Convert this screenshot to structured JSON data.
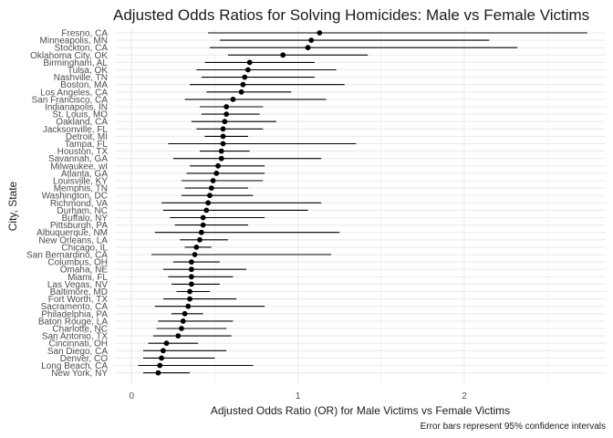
{
  "chart_data": {
    "type": "scatter",
    "subtype": "forest-plot",
    "title": "Adjusted Odds Ratios for Solving Homicides: Male vs Female Victims",
    "xlabel": "Adjusted Odds Ratio (OR) for Male Victims vs Female Victims",
    "ylabel": "City, State",
    "caption": "Error bars represent 95% confidence intervals",
    "xlim": [
      -0.1,
      2.85
    ],
    "xticks": [
      0,
      1,
      2
    ],
    "grid": true,
    "legend": "none",
    "colors": {
      "point": "#000000",
      "errorbar": "#000000",
      "grid": "#ebebeb"
    },
    "points": [
      {
        "city": "Fresno, CA",
        "or": 1.13,
        "lo": 0.46,
        "hi": 2.74
      },
      {
        "city": "Minneapolis, MN",
        "or": 1.08,
        "lo": 0.53,
        "hi": 2.15
      },
      {
        "city": "Stockton, CA",
        "or": 1.06,
        "lo": 0.47,
        "hi": 2.32
      },
      {
        "city": "Oklahoma City, OK",
        "or": 0.91,
        "lo": 0.58,
        "hi": 1.42
      },
      {
        "city": "Birmingham, AL",
        "or": 0.71,
        "lo": 0.44,
        "hi": 1.1
      },
      {
        "city": "Tulsa, OK",
        "or": 0.7,
        "lo": 0.39,
        "hi": 1.23
      },
      {
        "city": "Nashville, TN",
        "or": 0.68,
        "lo": 0.42,
        "hi": 1.1
      },
      {
        "city": "Boston, MA",
        "or": 0.67,
        "lo": 0.35,
        "hi": 1.28
      },
      {
        "city": "Los Angeles, CA",
        "or": 0.66,
        "lo": 0.45,
        "hi": 0.96
      },
      {
        "city": "San Francisco, CA",
        "or": 0.61,
        "lo": 0.32,
        "hi": 1.17
      },
      {
        "city": "Indianapolis, IN",
        "or": 0.57,
        "lo": 0.41,
        "hi": 0.79
      },
      {
        "city": "St. Louis, MO",
        "or": 0.57,
        "lo": 0.42,
        "hi": 0.77
      },
      {
        "city": "Oakland, CA",
        "or": 0.56,
        "lo": 0.36,
        "hi": 0.87
      },
      {
        "city": "Jacksonville, FL",
        "or": 0.55,
        "lo": 0.39,
        "hi": 0.79
      },
      {
        "city": "Detroit, MI",
        "or": 0.55,
        "lo": 0.44,
        "hi": 0.7
      },
      {
        "city": "Tampa, FL",
        "or": 0.55,
        "lo": 0.22,
        "hi": 1.35
      },
      {
        "city": "Houston, TX",
        "or": 0.54,
        "lo": 0.41,
        "hi": 0.71
      },
      {
        "city": "Savannah, GA",
        "or": 0.54,
        "lo": 0.25,
        "hi": 1.14
      },
      {
        "city": "Milwaukee, wI",
        "or": 0.52,
        "lo": 0.35,
        "hi": 0.8
      },
      {
        "city": "Atlanta, GA",
        "or": 0.51,
        "lo": 0.33,
        "hi": 0.8
      },
      {
        "city": "Louisville, KY",
        "or": 0.49,
        "lo": 0.3,
        "hi": 0.79
      },
      {
        "city": "Memphis, TN",
        "or": 0.48,
        "lo": 0.32,
        "hi": 0.7
      },
      {
        "city": "Washington, DC",
        "or": 0.47,
        "lo": 0.3,
        "hi": 0.73
      },
      {
        "city": "Richmond, VA",
        "or": 0.46,
        "lo": 0.18,
        "hi": 1.14
      },
      {
        "city": "Durham, NC",
        "or": 0.45,
        "lo": 0.19,
        "hi": 1.06
      },
      {
        "city": "Buffalo, NY",
        "or": 0.43,
        "lo": 0.23,
        "hi": 0.8
      },
      {
        "city": "Pittsburgh, PA",
        "or": 0.43,
        "lo": 0.26,
        "hi": 0.7
      },
      {
        "city": "Albuquerque, NM",
        "or": 0.42,
        "lo": 0.14,
        "hi": 1.25
      },
      {
        "city": "New Orleans, LA",
        "or": 0.41,
        "lo": 0.29,
        "hi": 0.58
      },
      {
        "city": "Chicago, IL",
        "or": 0.39,
        "lo": 0.32,
        "hi": 0.48
      },
      {
        "city": "San Bernardino, CA",
        "or": 0.38,
        "lo": 0.12,
        "hi": 1.2
      },
      {
        "city": "Columbus, OH",
        "or": 0.36,
        "lo": 0.25,
        "hi": 0.53
      },
      {
        "city": "Omaha, NE",
        "or": 0.36,
        "lo": 0.19,
        "hi": 0.69
      },
      {
        "city": "Miami, FL",
        "or": 0.36,
        "lo": 0.22,
        "hi": 0.61
      },
      {
        "city": "Las Vegas, NV",
        "or": 0.36,
        "lo": 0.24,
        "hi": 0.53
      },
      {
        "city": "Baltimore, MD",
        "or": 0.35,
        "lo": 0.27,
        "hi": 0.47
      },
      {
        "city": "Fort Worth, TX",
        "or": 0.35,
        "lo": 0.19,
        "hi": 0.63
      },
      {
        "city": "Sacramento, CA",
        "or": 0.34,
        "lo": 0.14,
        "hi": 0.8
      },
      {
        "city": "Philadelphia, PA",
        "or": 0.32,
        "lo": 0.24,
        "hi": 0.43
      },
      {
        "city": "Baton Rouge, LA",
        "or": 0.31,
        "lo": 0.16,
        "hi": 0.61
      },
      {
        "city": "Charlotte, NC",
        "or": 0.3,
        "lo": 0.15,
        "hi": 0.57
      },
      {
        "city": "San Antonio, TX",
        "or": 0.28,
        "lo": 0.13,
        "hi": 0.6
      },
      {
        "city": "Cincinnati, OH",
        "or": 0.21,
        "lo": 0.1,
        "hi": 0.4
      },
      {
        "city": "San Diego, CA",
        "or": 0.19,
        "lo": 0.07,
        "hi": 0.57
      },
      {
        "city": "Denver, CO",
        "or": 0.18,
        "lo": 0.07,
        "hi": 0.5
      },
      {
        "city": "Long Beach, CA",
        "or": 0.17,
        "lo": 0.04,
        "hi": 0.73
      },
      {
        "city": "New York, NY",
        "or": 0.16,
        "lo": 0.07,
        "hi": 0.35
      }
    ]
  }
}
